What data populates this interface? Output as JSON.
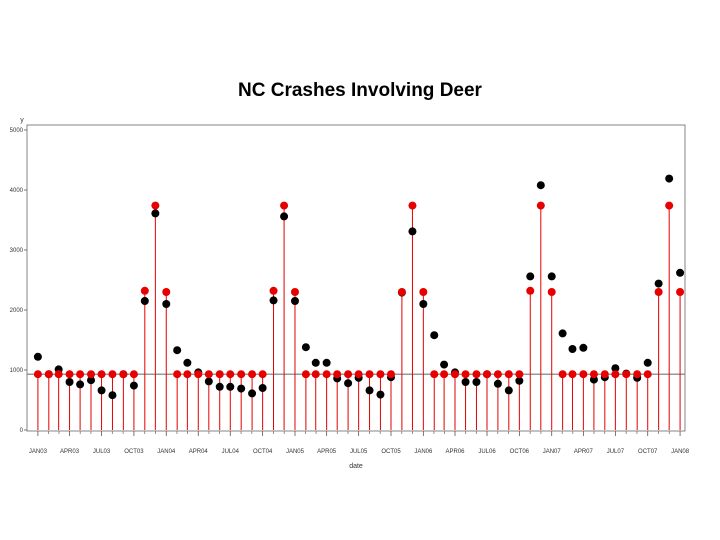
{
  "chart_data": {
    "type": "scatter",
    "title": "NC Crashes Involving Deer",
    "xlabel": "date",
    "ylabel": "y",
    "ylim": [
      0,
      5000
    ],
    "yticks": [
      "0",
      "1000",
      "2000",
      "3000",
      "4000",
      "5000"
    ],
    "xlim": [
      "2002-12-01",
      "2008-01-15"
    ],
    "xticks": [
      {
        "label": "JAN03",
        "date": "2003-01-01"
      },
      {
        "label": "APR03",
        "date": "2003-04-01"
      },
      {
        "label": "JUL03",
        "date": "2003-07-01"
      },
      {
        "label": "OCT03",
        "date": "2003-10-01"
      },
      {
        "label": "JAN04",
        "date": "2004-01-01"
      },
      {
        "label": "APR04",
        "date": "2004-04-01"
      },
      {
        "label": "JUL04",
        "date": "2004-07-01"
      },
      {
        "label": "OCT04",
        "date": "2004-10-01"
      },
      {
        "label": "JAN05",
        "date": "2005-01-01"
      },
      {
        "label": "APR05",
        "date": "2005-04-01"
      },
      {
        "label": "JUL05",
        "date": "2005-07-01"
      },
      {
        "label": "OCT05",
        "date": "2005-10-01"
      },
      {
        "label": "JAN06",
        "date": "2006-01-01"
      },
      {
        "label": "APR06",
        "date": "2006-04-01"
      },
      {
        "label": "JUL06",
        "date": "2006-07-01"
      },
      {
        "label": "OCT06",
        "date": "2006-10-01"
      },
      {
        "label": "JAN07",
        "date": "2007-01-01"
      },
      {
        "label": "APR07",
        "date": "2007-04-01"
      },
      {
        "label": "JUL07",
        "date": "2007-07-01"
      },
      {
        "label": "OCT07",
        "date": "2007-10-01"
      },
      {
        "label": "JAN08",
        "date": "2008-01-01"
      }
    ],
    "reference_line": 930,
    "x": [
      "2003-01-01",
      "2003-02-01",
      "2003-03-01",
      "2003-04-01",
      "2003-05-01",
      "2003-06-01",
      "2003-07-01",
      "2003-08-01",
      "2003-09-01",
      "2003-10-01",
      "2003-11-01",
      "2003-12-01",
      "2004-01-01",
      "2004-02-01",
      "2004-03-01",
      "2004-04-01",
      "2004-05-01",
      "2004-06-01",
      "2004-07-01",
      "2004-08-01",
      "2004-09-01",
      "2004-10-01",
      "2004-11-01",
      "2004-12-01",
      "2005-01-01",
      "2005-02-01",
      "2005-03-01",
      "2005-04-01",
      "2005-05-01",
      "2005-06-01",
      "2005-07-01",
      "2005-08-01",
      "2005-09-01",
      "2005-10-01",
      "2005-11-01",
      "2005-12-01",
      "2006-01-01",
      "2006-02-01",
      "2006-03-01",
      "2006-04-01",
      "2006-05-01",
      "2006-06-01",
      "2006-07-01",
      "2006-08-01",
      "2006-09-01",
      "2006-10-01",
      "2006-11-01",
      "2006-12-01",
      "2007-01-01",
      "2007-02-01",
      "2007-03-01",
      "2007-04-01",
      "2007-05-01",
      "2007-06-01",
      "2007-07-01",
      "2007-08-01",
      "2007-09-01",
      "2007-10-01",
      "2007-11-01",
      "2007-12-01"
    ],
    "series": [
      {
        "color": "#000000",
        "values": [
          1220,
          930,
          1010,
          800,
          760,
          830,
          660,
          580,
          930,
          740,
          2150,
          3610,
          2100,
          1330,
          1120,
          960,
          810,
          720,
          720,
          690,
          610,
          700,
          2160,
          3560,
          2150,
          1380,
          1120,
          1120,
          860,
          780,
          870,
          660,
          590,
          880,
          2290,
          3310,
          2100,
          1580,
          1090,
          960,
          800,
          800,
          930,
          770,
          660,
          820,
          2560,
          4080,
          2560,
          1610,
          1350,
          1370,
          840,
          880,
          1030,
          940,
          870,
          1120,
          2440,
          4190
        ]
      },
      {
        "color": "#e60000",
        "values": [
          930,
          930,
          930,
          930,
          930,
          930,
          930,
          930,
          930,
          930,
          2320,
          3740,
          2300,
          930,
          930,
          930,
          930,
          930,
          930,
          930,
          930,
          930,
          2320,
          3740,
          2300,
          930,
          930,
          930,
          930,
          930,
          930,
          930,
          930,
          930,
          2300,
          3740,
          2300,
          930,
          930,
          930,
          930,
          930,
          930,
          930,
          930,
          930,
          2320,
          3740,
          2300,
          930,
          930,
          930,
          930,
          930,
          930,
          930,
          930,
          930,
          2300,
          3740
        ]
      }
    ],
    "extra_points": [
      {
        "date": "2008-01-01",
        "black": 2620,
        "red": 2300
      }
    ]
  }
}
